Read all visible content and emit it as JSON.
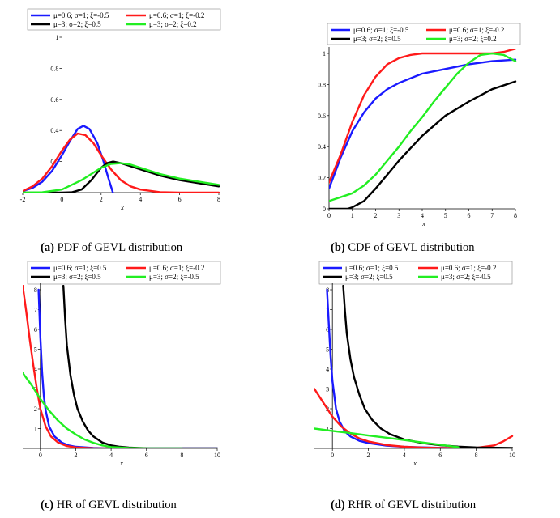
{
  "captions": [
    {
      "label": "(a)",
      "text": "PDF of GEVL distribution"
    },
    {
      "label": "(b)",
      "text": "CDF of GEVL distribution"
    },
    {
      "label": "(c)",
      "text": "HR of GEVL distribution"
    },
    {
      "label": "(d)",
      "text": "RHR of GEVL distribution"
    }
  ],
  "colors": {
    "blue": "#1a1aff",
    "red": "#ff1a1a",
    "black": "#000000",
    "green": "#22ee22"
  },
  "chart_data": [
    {
      "type": "line",
      "title": "PDF of GEVL distribution",
      "xlabel": "x",
      "ylabel": "",
      "xlim": [
        -2,
        8
      ],
      "ylim": [
        0,
        1
      ],
      "xticks": [
        "-2",
        "0",
        "2",
        "4",
        "6",
        "8"
      ],
      "yticks": [
        "0.2",
        "0.4",
        "0.6",
        "0.8",
        "1"
      ],
      "legend": [
        "μ=0.6; σ=1; ξ=-0.5",
        "μ=0.6; σ=1; ξ=-0.2",
        "μ=3; σ=2; ξ=0.5",
        "μ=3; σ=2; ξ=0.2"
      ],
      "series": [
        {
          "name": "μ=0.6; σ=1; ξ=-0.5",
          "color": "#1a1aff",
          "x": [
            -2,
            -1.5,
            -1,
            -0.5,
            0,
            0.4,
            0.8,
            1.1,
            1.4,
            1.8,
            2.1,
            2.4,
            2.6
          ],
          "y": [
            0.01,
            0.03,
            0.07,
            0.14,
            0.24,
            0.33,
            0.41,
            0.43,
            0.41,
            0.32,
            0.21,
            0.08,
            0.0
          ]
        },
        {
          "name": "μ=0.6; σ=1; ξ=-0.2",
          "color": "#ff1a1a",
          "x": [
            -2,
            -1.5,
            -1,
            -0.5,
            0,
            0.4,
            0.8,
            1.2,
            1.6,
            2,
            2.5,
            3,
            3.5,
            4,
            5,
            6,
            7,
            8
          ],
          "y": [
            0.01,
            0.04,
            0.09,
            0.17,
            0.27,
            0.34,
            0.38,
            0.37,
            0.32,
            0.24,
            0.15,
            0.08,
            0.04,
            0.02,
            0.003,
            0.0,
            0.0,
            0.0
          ]
        },
        {
          "name": "μ=3; σ=2; ξ=0.5",
          "color": "#000000",
          "x": [
            -2,
            0,
            0.5,
            1,
            1.5,
            2,
            2.3,
            2.6,
            3,
            3.5,
            4,
            5,
            6,
            7,
            8
          ],
          "y": [
            0.0,
            0.0,
            0.002,
            0.02,
            0.08,
            0.16,
            0.19,
            0.2,
            0.19,
            0.17,
            0.15,
            0.11,
            0.08,
            0.06,
            0.04
          ]
        },
        {
          "name": "μ=3; σ=2; ξ=0.2",
          "color": "#22ee22",
          "x": [
            -2,
            -1,
            0,
            0.5,
            1,
            1.5,
            2,
            2.5,
            3,
            3.5,
            4,
            5,
            6,
            7,
            8
          ],
          "y": [
            0.0,
            0.002,
            0.02,
            0.05,
            0.08,
            0.12,
            0.16,
            0.185,
            0.19,
            0.18,
            0.16,
            0.12,
            0.09,
            0.07,
            0.05
          ]
        }
      ]
    },
    {
      "type": "line",
      "title": "CDF of GEVL distribution",
      "xlabel": "x",
      "ylabel": "",
      "xlim": [
        0,
        8
      ],
      "ylim": [
        0,
        1
      ],
      "xticks": [
        "0",
        "1",
        "2",
        "3",
        "4",
        "5",
        "6",
        "7",
        "8"
      ],
      "yticks": [
        "0",
        "0.2",
        "0.4",
        "0.6",
        "0.8",
        "1"
      ],
      "legend": [
        "μ=0.6; σ=1; ξ=-0.5",
        "μ=0.6; σ=1; ξ=-0.2",
        "μ=3; σ=2; ξ=0.5",
        "μ=3; σ=2; ξ=0.2"
      ],
      "series": [
        {
          "name": "μ=0.6; σ=1; ξ=-0.5",
          "color": "#1a1aff",
          "x": [
            0,
            0.5,
            1,
            1.5,
            2,
            2.5,
            3,
            3.5,
            4,
            5,
            6,
            7,
            8
          ],
          "y": [
            0.13,
            0.33,
            0.5,
            0.62,
            0.71,
            0.77,
            0.81,
            0.84,
            0.87,
            0.9,
            0.93,
            0.95,
            0.96
          ]
        },
        {
          "name": "μ=0.6; σ=1; ξ=-0.2",
          "color": "#ff1a1a",
          "x": [
            0,
            0.5,
            1,
            1.5,
            2,
            2.5,
            3,
            3.5,
            4,
            5,
            6,
            7,
            7.5,
            8
          ],
          "y": [
            0.17,
            0.35,
            0.56,
            0.73,
            0.85,
            0.93,
            0.97,
            0.99,
            1.0,
            1.0,
            1.0,
            1.0,
            1.01,
            1.03
          ]
        },
        {
          "name": "μ=3; σ=2; ξ=0.5",
          "color": "#000000",
          "x": [
            0,
            0.8,
            1,
            1.5,
            2,
            2.5,
            3,
            3.5,
            4,
            5,
            6,
            7,
            8
          ],
          "y": [
            0.0,
            0.0,
            0.01,
            0.05,
            0.13,
            0.22,
            0.31,
            0.39,
            0.47,
            0.6,
            0.69,
            0.77,
            0.82
          ]
        },
        {
          "name": "μ=3; σ=2; ξ=0.2",
          "color": "#22ee22",
          "x": [
            0,
            1,
            1.5,
            2,
            2.5,
            3,
            3.5,
            4,
            4.5,
            5,
            5.5,
            6,
            6.5,
            7,
            7.5,
            8
          ],
          "y": [
            0.05,
            0.1,
            0.15,
            0.22,
            0.31,
            0.4,
            0.5,
            0.59,
            0.69,
            0.78,
            0.87,
            0.94,
            0.99,
            1.0,
            0.99,
            0.95
          ]
        }
      ]
    },
    {
      "type": "line",
      "title": "HR of GEVL distribution",
      "xlabel": "x",
      "ylabel": "",
      "xlim": [
        -1,
        10
      ],
      "ylim": [
        0,
        8
      ],
      "xticks": [
        "0",
        "2",
        "4",
        "6",
        "8",
        "10"
      ],
      "yticks": [
        "1",
        "2",
        "3",
        "4",
        "5",
        "6",
        "7",
        "8"
      ],
      "legend": [
        "μ=0.6; σ=1; ξ=0.5",
        "μ=0.6; σ=1; ξ=-0.2",
        "μ=3; σ=2; ξ=0.5",
        "μ=3; σ=2; ξ=-0.5"
      ],
      "series": [
        {
          "name": "μ=0.6; σ=1; ξ=0.5",
          "color": "#1a1aff",
          "x": [
            -0.1,
            0,
            0.1,
            0.2,
            0.3,
            0.5,
            0.8,
            1.2,
            1.6,
            2,
            3,
            4,
            6,
            8,
            10
          ],
          "y": [
            8,
            5.6,
            3.8,
            2.6,
            1.9,
            1.1,
            0.6,
            0.3,
            0.15,
            0.08,
            0.02,
            0.0,
            0.0,
            0.0,
            0.0
          ]
        },
        {
          "name": "μ=0.6; σ=1; ξ=-0.2",
          "color": "#ff1a1a",
          "x": [
            -1,
            -0.8,
            -0.6,
            -0.4,
            -0.2,
            0,
            0.3,
            0.6,
            1,
            1.5,
            2,
            3,
            4
          ],
          "y": [
            8.2,
            6.9,
            5.5,
            4.2,
            3.0,
            2.0,
            1.1,
            0.6,
            0.3,
            0.12,
            0.05,
            0.01,
            0.0
          ]
        },
        {
          "name": "μ=3; σ=2; ξ=0.5",
          "color": "#000000",
          "x": [
            1.3,
            1.4,
            1.5,
            1.7,
            1.9,
            2.1,
            2.4,
            2.7,
            3,
            3.5,
            4,
            4.5,
            5,
            6,
            8,
            10
          ],
          "y": [
            8.2,
            6.5,
            5.2,
            3.7,
            2.7,
            2.0,
            1.35,
            0.9,
            0.6,
            0.3,
            0.15,
            0.08,
            0.04,
            0.01,
            0.0,
            0.0
          ]
        },
        {
          "name": "μ=3; σ=2; ξ=-0.5",
          "color": "#22ee22",
          "x": [
            -1,
            -0.5,
            0,
            0.5,
            1,
            1.5,
            2,
            2.5,
            3,
            3.5,
            4,
            5,
            6,
            7,
            8
          ],
          "y": [
            3.8,
            3.2,
            2.5,
            1.9,
            1.4,
            1.0,
            0.7,
            0.45,
            0.28,
            0.15,
            0.07,
            0.02,
            0.0,
            0.0,
            0.0
          ]
        }
      ]
    },
    {
      "type": "line",
      "title": "RHR of GEVL distribution",
      "xlabel": "x",
      "ylabel": "",
      "xlim": [
        -1,
        10
      ],
      "ylim": [
        0,
        8
      ],
      "xticks": [
        "0",
        "2",
        "4",
        "6",
        "8",
        "10"
      ],
      "yticks": [
        "1",
        "2",
        "3",
        "4",
        "5",
        "6",
        "7",
        "8"
      ],
      "legend": [
        "μ=0.6; σ=1; ξ=0.5",
        "μ=0.6; σ=1; ξ=-0.2",
        "μ=3; σ=2; ξ=0.5",
        "μ=3; σ=2; ξ=-0.5"
      ],
      "series": [
        {
          "name": "μ=0.6; σ=1; ξ=0.5",
          "color": "#1a1aff",
          "x": [
            -0.3,
            -0.2,
            -0.1,
            0,
            0.2,
            0.4,
            0.7,
            1,
            1.5,
            2,
            3,
            4,
            6,
            8,
            10
          ],
          "y": [
            8,
            6.3,
            4.6,
            3.4,
            2.0,
            1.35,
            0.85,
            0.6,
            0.38,
            0.27,
            0.14,
            0.08,
            0.03,
            0.01,
            0.0
          ]
        },
        {
          "name": "μ=0.6; σ=1; ξ=-0.2",
          "color": "#ff1a1a",
          "x": [
            -1,
            -0.5,
            0,
            0.5,
            1,
            1.5,
            2,
            3,
            4,
            5,
            6,
            7,
            8,
            9,
            9.5,
            10
          ],
          "y": [
            3.0,
            2.3,
            1.6,
            1.1,
            0.75,
            0.5,
            0.35,
            0.17,
            0.08,
            0.04,
            0.02,
            0.01,
            0.03,
            0.15,
            0.35,
            0.62
          ]
        },
        {
          "name": "μ=3; σ=2; ξ=0.5",
          "color": "#000000",
          "x": [
            0.6,
            0.7,
            0.8,
            1,
            1.2,
            1.5,
            1.8,
            2.2,
            2.7,
            3.2,
            4,
            5,
            6,
            7,
            8,
            10
          ],
          "y": [
            8.2,
            6.9,
            5.8,
            4.5,
            3.6,
            2.7,
            2.0,
            1.45,
            1.0,
            0.72,
            0.45,
            0.27,
            0.16,
            0.09,
            0.05,
            0.02
          ]
        },
        {
          "name": "μ=3; σ=2; ξ=-0.5",
          "color": "#22ee22",
          "x": [
            -1,
            0,
            1,
            2,
            3,
            4,
            5,
            6,
            7
          ],
          "y": [
            1.0,
            0.88,
            0.77,
            0.65,
            0.54,
            0.42,
            0.3,
            0.18,
            0.06
          ]
        }
      ]
    }
  ]
}
